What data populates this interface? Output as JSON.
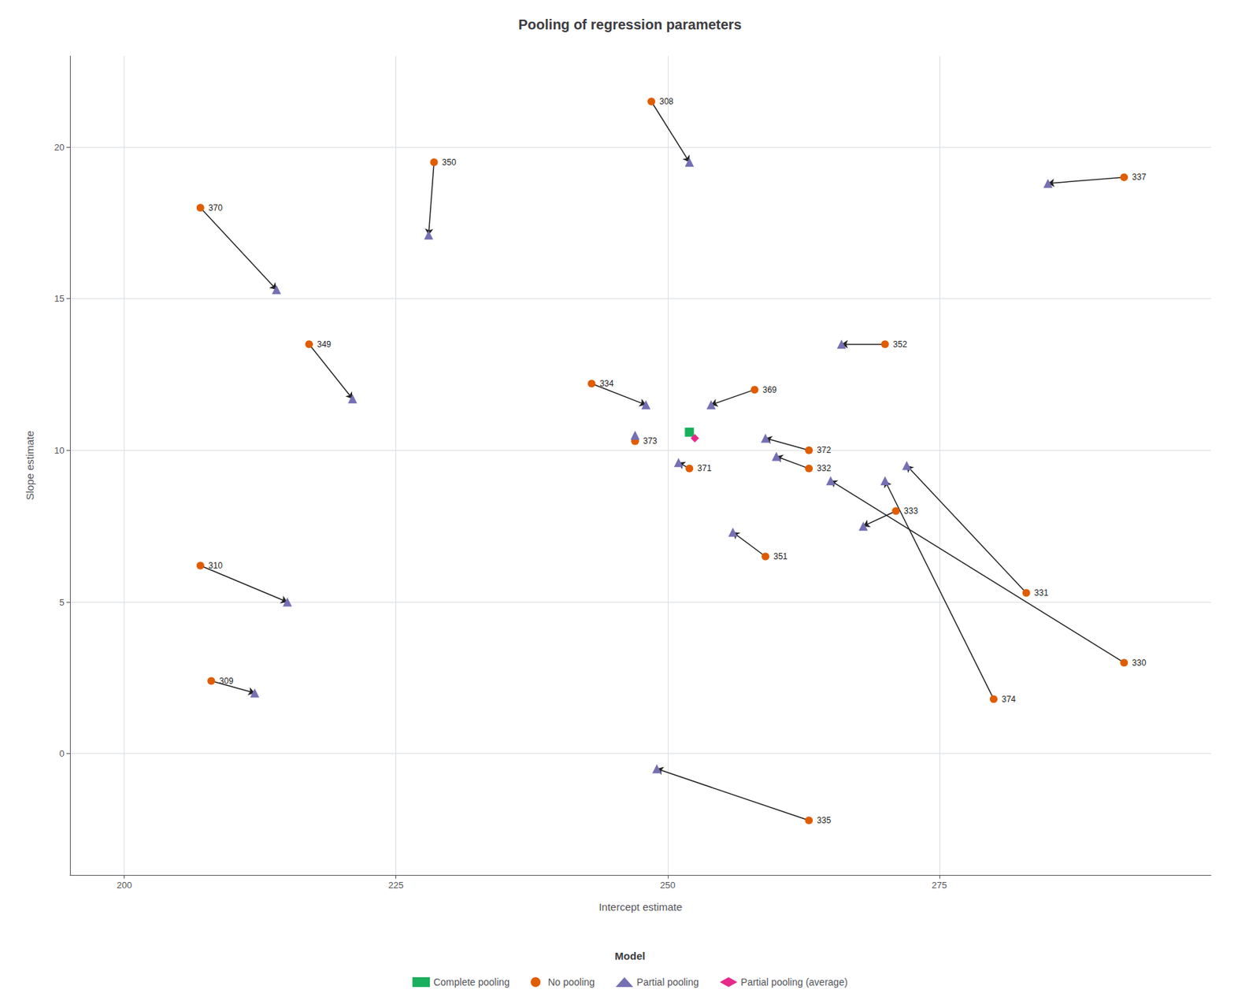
{
  "chart_data": {
    "type": "scatter",
    "title": "Pooling of regression parameters",
    "xlabel": "Intercept estimate",
    "ylabel": "Slope estimate",
    "xlim": [
      195,
      300
    ],
    "ylim": [
      -4,
      23
    ],
    "xticks": [
      200,
      225,
      250,
      275
    ],
    "yticks": [
      0,
      5,
      10,
      15,
      20
    ],
    "grid": true,
    "legend": "bottom",
    "legend_title": "Model",
    "arrows": {
      "from": "No pooling",
      "to": "Partial pooling"
    },
    "series": [
      {
        "name": "Complete pooling",
        "color": "#1aaf5d",
        "marker": "square",
        "x": [
          252
        ],
        "y": [
          10.6
        ]
      },
      {
        "name": "No pooling",
        "color": "#e05c00",
        "marker": "circle",
        "labels": [
          "308",
          "350",
          "370",
          "349",
          "334",
          "310",
          "309",
          "373",
          "371",
          "369",
          "372",
          "332",
          "351",
          "352",
          "333",
          "331",
          "374",
          "330",
          "337",
          "335"
        ],
        "x": [
          248.5,
          228.5,
          207,
          217,
          243,
          207,
          208,
          247,
          252,
          258,
          263,
          263,
          259,
          270,
          271,
          283,
          280,
          292,
          292,
          263
        ],
        "y": [
          21.5,
          19.5,
          18,
          13.5,
          12.2,
          6.2,
          2.4,
          10.3,
          9.4,
          12.0,
          10.0,
          9.4,
          6.5,
          13.5,
          8.0,
          5.3,
          1.8,
          3.0,
          19.0,
          -2.2
        ]
      },
      {
        "name": "Partial pooling",
        "color": "#7570b3",
        "marker": "triangle",
        "x": [
          252,
          228,
          214,
          221,
          248,
          215,
          212,
          247,
          251,
          254,
          259,
          260,
          256,
          266,
          268,
          272,
          270,
          265,
          285,
          249
        ],
        "y": [
          19.5,
          17.1,
          15.3,
          11.7,
          11.5,
          5.0,
          2.0,
          10.5,
          9.6,
          11.5,
          10.4,
          9.8,
          7.3,
          13.5,
          7.5,
          9.5,
          9.0,
          9.0,
          18.8,
          -0.5
        ]
      },
      {
        "name": "Partial pooling (average)",
        "color": "#e7298a",
        "marker": "diamond",
        "x": [
          252.5
        ],
        "y": [
          10.4
        ]
      }
    ]
  }
}
